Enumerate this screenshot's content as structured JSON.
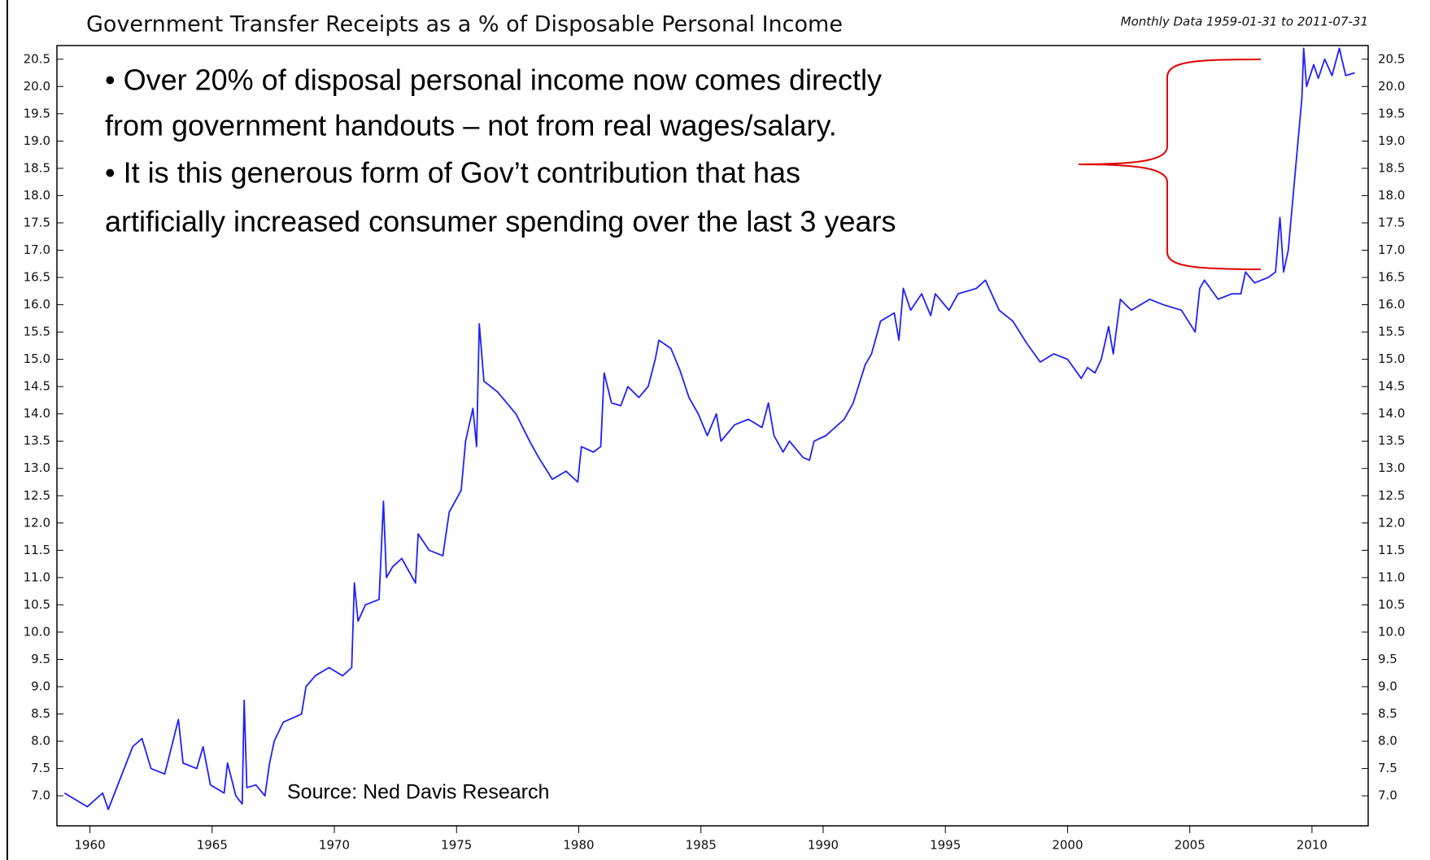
{
  "chart_data": {
    "type": "line",
    "title": "Government Transfer Receipts as a % of Disposable Personal Income",
    "subtitle": "Monthly Data 1959-01-31 to 2011-07-31",
    "annotations": [
      "• Over 20% of disposal personal income now comes directly",
      "from government handouts – not from real wages/salary.",
      "• It is this generous form of Gov’t contribution that has",
      "artificially increased consumer spending over the last 3 years"
    ],
    "source": "Source: Ned Davis Research",
    "xlim": [
      1958.65,
      2012.3
    ],
    "xticks": [
      1960,
      1965,
      1970,
      1975,
      1980,
      1985,
      1990,
      1995,
      2000,
      2005,
      2010
    ],
    "ylim": [
      6.45,
      20.75
    ],
    "yticks": [
      {
        "value": 7,
        "label": "7.0"
      },
      7.5,
      {
        "value": 8,
        "label": "8.0"
      },
      8.5,
      {
        "value": 9,
        "label": "9.0"
      },
      9.5,
      {
        "value": 10,
        "label": "10.0"
      },
      10.5,
      {
        "value": 11,
        "label": "11.0"
      },
      11.5,
      {
        "value": 12,
        "label": "12.0"
      },
      12.5,
      {
        "value": 13,
        "label": "13.0"
      },
      13.5,
      {
        "value": 14,
        "label": "14.0"
      },
      14.5,
      {
        "value": 15,
        "label": "15.0"
      },
      15.5,
      {
        "value": 16,
        "label": "16.0"
      },
      16.5,
      {
        "value": 17,
        "label": "17.0"
      },
      17.5,
      {
        "value": 18,
        "label": "18.0"
      },
      18.5,
      {
        "value": 19,
        "label": "19.0"
      },
      19.5,
      {
        "value": 20,
        "label": "20.0"
      },
      20.5
    ],
    "color": "#1f1fff",
    "x": [
      1958.96,
      1959.89,
      1960.52,
      1960.75,
      1961.75,
      1962.13,
      1962.5,
      1963.06,
      1963.62,
      1963.81,
      1964.37,
      1964.63,
      1964.93,
      1965.49,
      1965.63,
      1965.97,
      1966.23,
      1966.31,
      1966.42,
      1966.79,
      1967.16,
      1967.35,
      1967.54,
      1967.91,
      1968.66,
      1968.84,
      1969.22,
      1969.78,
      1970.34,
      1970.71,
      1970.82,
      1970.97,
      1971.27,
      1971.83,
      1972.01,
      1972.13,
      1972.39,
      1972.76,
      1973.32,
      1973.43,
      1973.88,
      1974.44,
      1974.7,
      1975.19,
      1975.37,
      1975.67,
      1975.82,
      1975.93,
      1976.12,
      1976.68,
      1977.43,
      1977.99,
      1978.36,
      1978.92,
      1979.48,
      1979.96,
      1980.11,
      1980.6,
      1980.9,
      1981.04,
      1981.34,
      1981.72,
      1982.01,
      1982.46,
      1982.84,
      1983.13,
      1983.28,
      1983.77,
      1984.14,
      1984.51,
      1984.89,
      1985.26,
      1985.63,
      1985.82,
      1986.38,
      1986.94,
      1987.5,
      1987.76,
      1987.99,
      1988.36,
      1988.62,
      1989.18,
      1989.44,
      1989.63,
      1990.11,
      1990.86,
      1991.23,
      1991.72,
      1991.98,
      1992.35,
      1992.91,
      1993.1,
      1993.28,
      1993.58,
      1994.03,
      1994.4,
      1994.59,
      1995.15,
      1995.52,
      1996.27,
      1996.64,
      1997.2,
      1997.76,
      1998.32,
      1998.88,
      1999.44,
      2000.0,
      2000.56,
      2000.82,
      2001.12,
      2001.38,
      2001.68,
      2001.87,
      2002.16,
      2002.61,
      2003.36,
      2003.92,
      2004.66,
      2005.22,
      2005.41,
      2005.6,
      2006.16,
      2006.72,
      2007.09,
      2007.28,
      2007.65,
      2008.21,
      2008.51,
      2008.69,
      2008.84,
      2009.03,
      2009.33,
      2009.59,
      2009.66,
      2009.78,
      2010.07,
      2010.26,
      2010.52,
      2010.82,
      2011.12,
      2011.38,
      2011.75
    ],
    "values": [
      7.05,
      6.8,
      7.05,
      6.75,
      7.9,
      8.05,
      7.5,
      7.4,
      8.4,
      7.6,
      7.5,
      7.9,
      7.2,
      7.05,
      7.6,
      7.0,
      6.85,
      8.75,
      7.15,
      7.2,
      7.0,
      7.6,
      8.0,
      8.35,
      8.5,
      9.0,
      9.2,
      9.35,
      9.2,
      9.35,
      10.9,
      10.2,
      10.5,
      10.6,
      12.4,
      11.0,
      11.2,
      11.35,
      10.9,
      11.8,
      11.5,
      11.4,
      12.2,
      12.6,
      13.5,
      14.1,
      13.4,
      15.65,
      14.6,
      14.4,
      14.0,
      13.5,
      13.2,
      12.8,
      12.95,
      12.75,
      13.4,
      13.3,
      13.4,
      14.75,
      14.2,
      14.15,
      14.5,
      14.3,
      14.5,
      15.0,
      15.35,
      15.2,
      14.8,
      14.3,
      14.0,
      13.6,
      14.0,
      13.5,
      13.8,
      13.9,
      13.75,
      14.2,
      13.6,
      13.3,
      13.5,
      13.2,
      13.15,
      13.5,
      13.6,
      13.9,
      14.2,
      14.9,
      15.1,
      15.7,
      15.85,
      15.35,
      16.3,
      15.9,
      16.2,
      15.8,
      16.2,
      15.9,
      16.2,
      16.3,
      16.45,
      15.9,
      15.7,
      15.3,
      14.95,
      15.1,
      15.0,
      14.65,
      14.85,
      14.75,
      15.0,
      15.6,
      15.1,
      16.1,
      15.9,
      16.1,
      16.0,
      15.9,
      15.5,
      16.3,
      16.45,
      16.1,
      16.2,
      16.2,
      16.6,
      16.4,
      16.5,
      16.6,
      17.6,
      16.6,
      17.0,
      18.5,
      19.8,
      20.7,
      20.0,
      20.4,
      20.15,
      20.5,
      20.2,
      20.7,
      20.2,
      20.25
    ]
  }
}
